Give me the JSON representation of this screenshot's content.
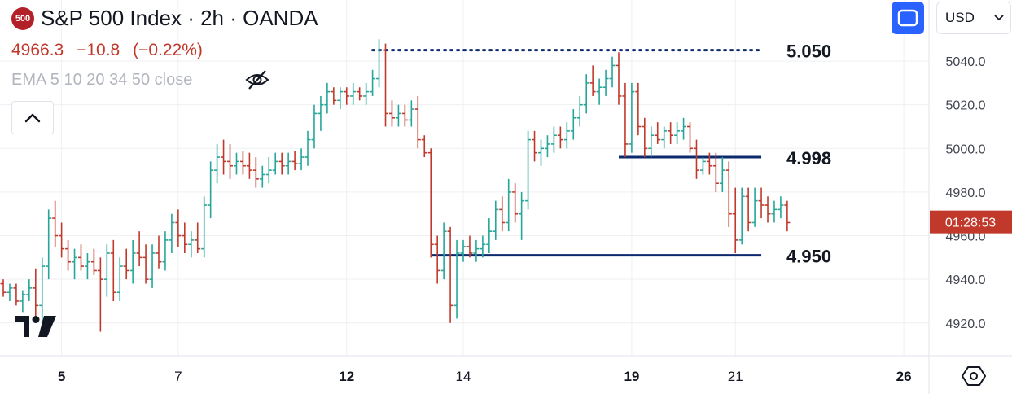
{
  "header": {
    "logo_text": "500",
    "title": "S&P 500 Index · 2h · OANDA",
    "price": "4966.3",
    "change": "−10.8",
    "change_pct": "(−0.22%)",
    "indicator": "EMA 5 10 20 34 50 close",
    "currency": "USD"
  },
  "colors": {
    "up": "#26a69a",
    "down": "#c0392b",
    "level_line": "#0d2a6e",
    "accent": "#2962ff",
    "grid": "#eef0f3"
  },
  "icons": [
    "eye-slash-icon",
    "chevron-up-icon",
    "fullscreen-icon",
    "chevron-down-icon",
    "tradingview-logo",
    "settings-hexagon-icon"
  ],
  "chart_data": {
    "type": "ohlc",
    "ylim": [
      4905,
      5068
    ],
    "y_ticks": [
      5040,
      5020,
      5000,
      4980,
      4960,
      4940,
      4920
    ],
    "y_tick_labels": [
      "5040.0",
      "5020.0",
      "5000.0",
      "4980.0",
      "4960.0",
      "4940.0",
      "4920.0"
    ],
    "x_ticks": [
      {
        "label": "5",
        "bar": 9
      },
      {
        "label": "7",
        "bar": 27
      },
      {
        "label": "12",
        "bar": 53
      },
      {
        "label": "14",
        "bar": 71
      },
      {
        "label": "19",
        "bar": 97
      },
      {
        "label": "21",
        "bar": 113
      },
      {
        "label": "26",
        "bar": 139
      }
    ],
    "bars_total": 142,
    "countdown": "01:28:53",
    "last_price": 4966.3,
    "levels": [
      {
        "label": "5.050",
        "value": 5045,
        "style": "dotted",
        "from_bar": 57,
        "to_bar": 117
      },
      {
        "label": "4.998",
        "value": 4996,
        "style": "solid",
        "from_bar": 95,
        "to_bar": 117
      },
      {
        "label": "4.950",
        "value": 4951,
        "style": "solid",
        "from_bar": 66,
        "to_bar": 117
      }
    ],
    "ohlc": [
      [
        4938,
        4940,
        4932,
        4934
      ],
      [
        4934,
        4938,
        4930,
        4936
      ],
      [
        4936,
        4938,
        4928,
        4930
      ],
      [
        4930,
        4935,
        4925,
        4933
      ],
      [
        4933,
        4940,
        4930,
        4936
      ],
      [
        4936,
        4945,
        4920,
        4928
      ],
      [
        4928,
        4950,
        4918,
        4946
      ],
      [
        4946,
        4972,
        4940,
        4968
      ],
      [
        4968,
        4976,
        4955,
        4960
      ],
      [
        4960,
        4966,
        4950,
        4954
      ],
      [
        4954,
        4958,
        4944,
        4948
      ],
      [
        4948,
        4954,
        4940,
        4950
      ],
      [
        4950,
        4956,
        4944,
        4946
      ],
      [
        4946,
        4952,
        4940,
        4948
      ],
      [
        4948,
        4954,
        4942,
        4944
      ],
      [
        4944,
        4950,
        4916,
        4940
      ],
      [
        4940,
        4956,
        4932,
        4952
      ],
      [
        4952,
        4958,
        4930,
        4934
      ],
      [
        4934,
        4950,
        4930,
        4946
      ],
      [
        4946,
        4954,
        4940,
        4944
      ],
      [
        4944,
        4958,
        4938,
        4952
      ],
      [
        4952,
        4962,
        4946,
        4950
      ],
      [
        4950,
        4956,
        4938,
        4940
      ],
      [
        4940,
        4956,
        4936,
        4952
      ],
      [
        4952,
        4960,
        4945,
        4948
      ],
      [
        4948,
        4962,
        4944,
        4958
      ],
      [
        4958,
        4970,
        4952,
        4966
      ],
      [
        4966,
        4972,
        4955,
        4960
      ],
      [
        4960,
        4966,
        4952,
        4956
      ],
      [
        4956,
        4962,
        4950,
        4958
      ],
      [
        4958,
        4966,
        4952,
        4954
      ],
      [
        4954,
        4978,
        4950,
        4974
      ],
      [
        4974,
        4994,
        4968,
        4990
      ],
      [
        4990,
        5002,
        4984,
        4996
      ],
      [
        4996,
        5004,
        4988,
        4994
      ],
      [
        4994,
        5002,
        4986,
        4992
      ],
      [
        4992,
        4998,
        4988,
        4994
      ],
      [
        4994,
        4999,
        4988,
        4992
      ],
      [
        4992,
        4998,
        4986,
        4990
      ],
      [
        4990,
        4996,
        4982,
        4986
      ],
      [
        4986,
        4992,
        4982,
        4988
      ],
      [
        4988,
        4996,
        4984,
        4990
      ],
      [
        4990,
        4998,
        4988,
        4994
      ],
      [
        4994,
        4998,
        4988,
        4992
      ],
      [
        4992,
        4998,
        4988,
        4994
      ],
      [
        4994,
        4999,
        4990,
        4993
      ],
      [
        4993,
        5000,
        4990,
        4996
      ],
      [
        4996,
        5008,
        4992,
        5004
      ],
      [
        5004,
        5020,
        5000,
        5016
      ],
      [
        5016,
        5024,
        5008,
        5020
      ],
      [
        5020,
        5030,
        5016,
        5026
      ],
      [
        5026,
        5028,
        5020,
        5022
      ],
      [
        5022,
        5028,
        5018,
        5026
      ],
      [
        5026,
        5028,
        5020,
        5024
      ],
      [
        5024,
        5030,
        5020,
        5026
      ],
      [
        5026,
        5028,
        5022,
        5024
      ],
      [
        5024,
        5030,
        5020,
        5026
      ],
      [
        5026,
        5036,
        5024,
        5032
      ],
      [
        5032,
        5050,
        5028,
        5045
      ],
      [
        5045,
        5048,
        5010,
        5016
      ],
      [
        5016,
        5022,
        5010,
        5014
      ],
      [
        5014,
        5020,
        5010,
        5016
      ],
      [
        5016,
        5020,
        5010,
        5013
      ],
      [
        5013,
        5022,
        5010,
        5018
      ],
      [
        5018,
        5024,
        5000,
        5004
      ],
      [
        5004,
        5006,
        4996,
        4998
      ],
      [
        4998,
        5000,
        4950,
        4956
      ],
      [
        4956,
        4960,
        4938,
        4944
      ],
      [
        4944,
        4966,
        4940,
        4962
      ],
      [
        4962,
        4964,
        4920,
        4928
      ],
      [
        4928,
        4958,
        4922,
        4952
      ],
      [
        4952,
        4958,
        4948,
        4955
      ],
      [
        4955,
        4960,
        4950,
        4952
      ],
      [
        4952,
        4958,
        4948,
        4954
      ],
      [
        4954,
        4960,
        4950,
        4956
      ],
      [
        4956,
        4968,
        4952,
        4962
      ],
      [
        4962,
        4976,
        4958,
        4972
      ],
      [
        4972,
        4978,
        4962,
        4966
      ],
      [
        4966,
        4986,
        4962,
        4980
      ],
      [
        4980,
        4984,
        4966,
        4970
      ],
      [
        4970,
        4980,
        4958,
        4976
      ],
      [
        4976,
        5008,
        4972,
        5004
      ],
      [
        5004,
        5008,
        4994,
        4998
      ],
      [
        4998,
        5004,
        4992,
        5000
      ],
      [
        5000,
        5006,
        4996,
        5002
      ],
      [
        5002,
        5010,
        4998,
        5006
      ],
      [
        5006,
        5010,
        5000,
        5004
      ],
      [
        5004,
        5012,
        5000,
        5008
      ],
      [
        5008,
        5018,
        5004,
        5014
      ],
      [
        5014,
        5024,
        5010,
        5020
      ],
      [
        5020,
        5034,
        5016,
        5030
      ],
      [
        5030,
        5038,
        5024,
        5026
      ],
      [
        5026,
        5032,
        5020,
        5028
      ],
      [
        5028,
        5036,
        5024,
        5032
      ],
      [
        5032,
        5042,
        5028,
        5038
      ],
      [
        5038,
        5044,
        5020,
        5024
      ],
      [
        5024,
        5030,
        4996,
        5002
      ],
      [
        5002,
        5030,
        4998,
        5026
      ],
      [
        5026,
        5030,
        5006,
        5010
      ],
      [
        5010,
        5014,
        4996,
        5000
      ],
      [
        5000,
        5010,
        4996,
        5006
      ],
      [
        5006,
        5012,
        5002,
        5004
      ],
      [
        5004,
        5010,
        5000,
        5008
      ],
      [
        5008,
        5012,
        5002,
        5006
      ],
      [
        5006,
        5012,
        5002,
        5008
      ],
      [
        5008,
        5014,
        5004,
        5010
      ],
      [
        5010,
        5012,
        4998,
        5000
      ],
      [
        5000,
        5004,
        4986,
        4990
      ],
      [
        4990,
        4996,
        4988,
        4994
      ],
      [
        4994,
        4998,
        4988,
        4992
      ],
      [
        4992,
        4998,
        4980,
        4984
      ],
      [
        4984,
        4996,
        4980,
        4990
      ],
      [
        4990,
        4994,
        4964,
        4970
      ],
      [
        4970,
        4982,
        4952,
        4958
      ],
      [
        4958,
        4982,
        4956,
        4978
      ],
      [
        4978,
        4982,
        4962,
        4966
      ],
      [
        4966,
        4982,
        4964,
        4976
      ],
      [
        4976,
        4982,
        4968,
        4974
      ],
      [
        4974,
        4978,
        4966,
        4970
      ],
      [
        4970,
        4976,
        4966,
        4972
      ],
      [
        4972,
        4978,
        4968,
        4974
      ],
      [
        4974,
        4976,
        4962,
        4966
      ]
    ]
  }
}
